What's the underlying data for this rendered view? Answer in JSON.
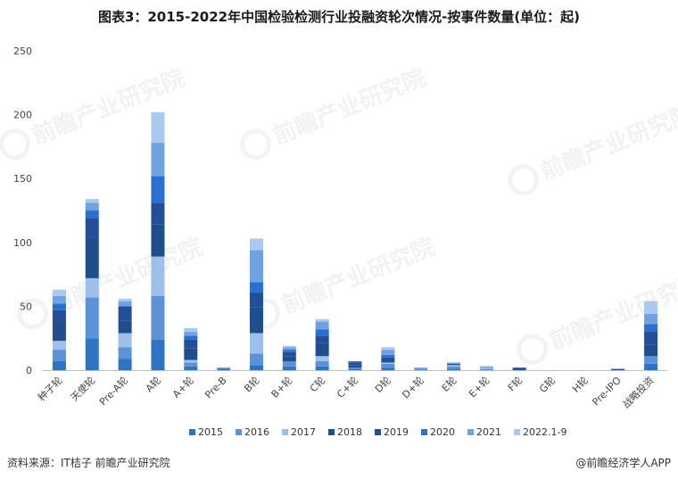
{
  "chart_data": {
    "type": "bar",
    "stacked": true,
    "title": "图表3：2015-2022年中国检验检测行业投融资轮次情况-按事件数量(单位：起)",
    "ylim": [
      0,
      250
    ],
    "yticks": [
      0,
      50,
      100,
      150,
      200,
      250
    ],
    "grid": false,
    "legend_position": "bottom",
    "categories": [
      "种子轮",
      "天使轮",
      "Pre-A轮",
      "A轮",
      "A+轮",
      "Pre-B",
      "B轮",
      "B+轮",
      "C轮",
      "C+轮",
      "D轮",
      "D+轮",
      "E轮",
      "E+轮",
      "F轮",
      "G轮",
      "H轮",
      "Pre-IPO",
      "战略投资"
    ],
    "series": [
      {
        "name": "2015",
        "color": "#2f73c5",
        "values": [
          7,
          25,
          9,
          24,
          3,
          1,
          4,
          3,
          3,
          1,
          2,
          0,
          1,
          0,
          0,
          0,
          0,
          0,
          5
        ]
      },
      {
        "name": "2016",
        "color": "#5b93d6",
        "values": [
          9,
          32,
          9,
          34,
          3,
          1,
          9,
          4,
          4,
          1,
          3,
          1,
          2,
          1,
          0,
          0,
          0,
          0,
          6
        ]
      },
      {
        "name": "2017",
        "color": "#9dbfe9",
        "values": [
          7,
          15,
          11,
          31,
          2,
          0,
          16,
          0,
          4,
          0,
          1,
          0,
          1,
          1,
          0,
          0,
          0,
          0,
          0
        ]
      },
      {
        "name": "2018",
        "color": "#1f4e8c",
        "values": [
          14,
          32,
          10,
          25,
          9,
          0,
          20,
          4,
          10,
          2,
          1,
          0,
          1,
          0,
          1,
          0,
          0,
          0,
          9
        ]
      },
      {
        "name": "2019",
        "color": "#234f9a",
        "values": [
          10,
          15,
          11,
          17,
          7,
          0,
          12,
          3,
          6,
          2,
          3,
          0,
          0,
          0,
          1,
          0,
          0,
          1,
          10
        ]
      },
      {
        "name": "2020",
        "color": "#2b6fd1",
        "values": [
          5,
          6,
          0,
          21,
          3,
          0,
          8,
          2,
          5,
          1,
          2,
          0,
          0,
          0,
          0,
          0,
          0,
          0,
          6
        ]
      },
      {
        "name": "2021",
        "color": "#6fa3e0",
        "values": [
          6,
          6,
          4,
          26,
          3,
          0,
          25,
          2,
          6,
          0,
          4,
          1,
          1,
          1,
          0,
          0,
          0,
          0,
          8
        ]
      },
      {
        "name": "2022.1-9",
        "color": "#a9c9ee",
        "values": [
          5,
          3,
          2,
          24,
          3,
          0,
          9,
          1,
          2,
          0,
          2,
          0,
          0,
          0,
          0,
          0,
          0,
          0,
          10
        ]
      }
    ]
  },
  "footer": {
    "source": "资料来源：IT桔子 前瞻产业研究院",
    "brand": "@前瞻经济学人APP"
  },
  "watermark": {
    "text": "前瞻产业研究院"
  }
}
